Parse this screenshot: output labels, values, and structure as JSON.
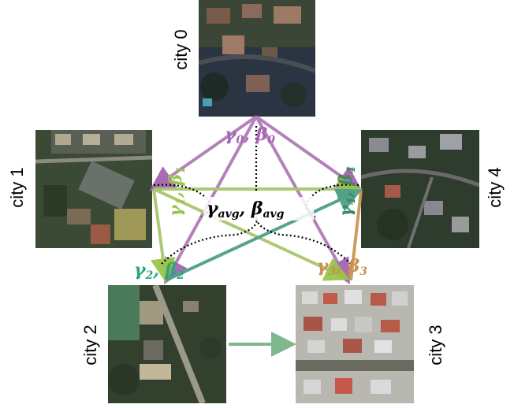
{
  "cities": [
    {
      "id": 0,
      "label": "city 0",
      "scene": "suburban"
    },
    {
      "id": 1,
      "label": "city 1",
      "scene": "suburban"
    },
    {
      "id": 2,
      "label": "city 2",
      "scene": "rural"
    },
    {
      "id": 3,
      "label": "city 3",
      "scene": "dense-urban"
    },
    {
      "id": 4,
      "label": "city 4",
      "scene": "suburban"
    }
  ],
  "params": {
    "p0": {
      "gamma": "γ",
      "beta": "β",
      "sub": "0",
      "color": "#a565b0"
    },
    "p1": {
      "gamma": "γ",
      "beta": "β",
      "sub": "1",
      "color": "#9bc44a"
    },
    "p2": {
      "gamma": "γ",
      "beta": "β",
      "sub": "2",
      "color": "#2aa779"
    },
    "p3": {
      "gamma": "γ",
      "beta": "β",
      "sub": "3",
      "color": "#c8924b"
    },
    "p4": {
      "gamma": "γ",
      "beta": "β",
      "sub": "4",
      "color": "#3b8a5f"
    },
    "avg": {
      "gamma": "γ",
      "beta": "β",
      "sub": "avg",
      "color": "#000000"
    }
  },
  "colors": {
    "arrow_city0": "#b27ab8",
    "arrow_city1": "#a9c76d",
    "arrow_city2": "#4e9f8d",
    "arrow_city3": "#c8924b",
    "arrow_transfer": "#7fb88e"
  }
}
